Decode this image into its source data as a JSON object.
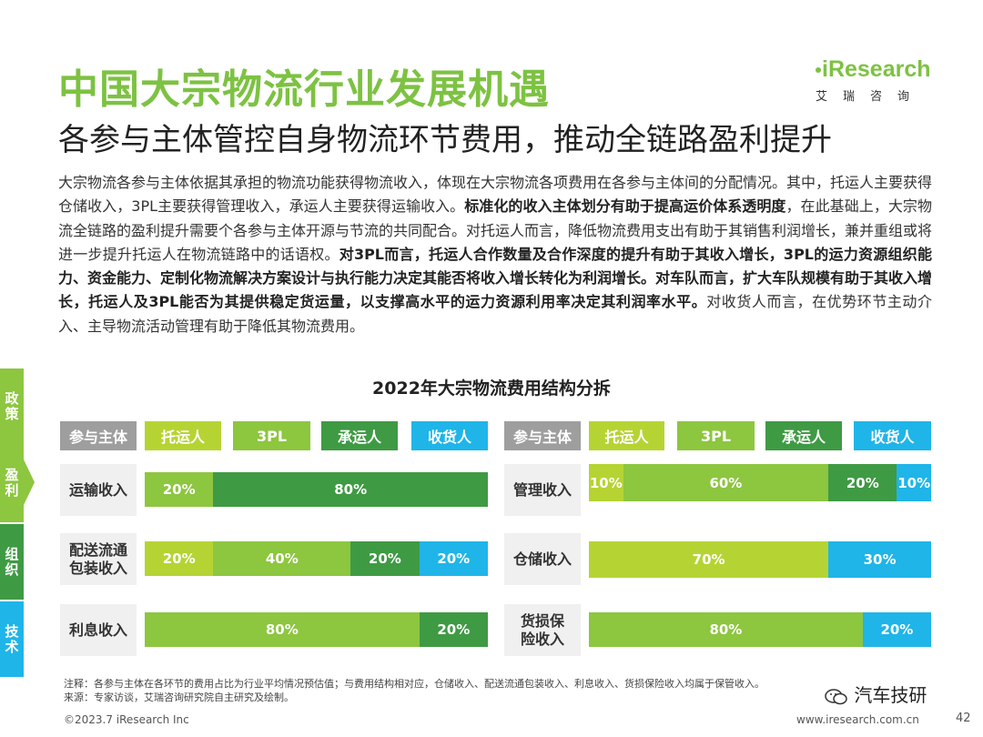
{
  "title": "中国大宗物流行业发展机遇",
  "subtitle": "各参与主体管控自身物流环节费用，推动全链路盈利提升",
  "logo": {
    "mark": "iResearch",
    "cn": "艾瑞咨询"
  },
  "paragraph": [
    {
      "t": "大宗物流各参与主体依据其承担的物流功能获得物流收入，体现在大宗物流各项费用在各参与主体间的分配情况。其中，托运人主要获得仓储收入，3PL主要获得管理收入，承运人主要获得运输收入。",
      "b": false
    },
    {
      "t": "标准化的收入主体划分有助于提高运价体系透明度",
      "b": true
    },
    {
      "t": "，在此基础上，大宗物流全链路的盈利提升需要个各参与主体开源与节流的共同配合。对托运人而言，降低物流费用支出有助于其销售利润增长，兼并重组或将进一步提升托运人在物流链路中的话语权。",
      "b": false
    },
    {
      "t": "对3PL而言，托运人合作数量及合作深度的提升有助于其收入增长，3PL的运力资源组织能力、资金能力、定制化物流解决方案设计与执行能力决定其能否将收入增长转化为利润增长。对车队而言，扩大车队规模有助于其收入增长，托运人及3PL能否为其提供稳定货运量，以支撑高水平的运力资源利用率决定其利润率水平。",
      "b": true
    },
    {
      "t": "对收货人而言，在优势环节主动介入、主导物流活动管理有助于降低其物流费用。",
      "b": false
    }
  ],
  "sidebar": [
    "政策",
    "盈利",
    "组织",
    "技术"
  ],
  "chart_data": {
    "type": "table",
    "title": "2022年大宗物流费用结构分拆",
    "header_label": "参与主体",
    "participants": [
      "托运人",
      "3PL",
      "承运人",
      "收货人"
    ],
    "participant_colors": [
      "#b5d433",
      "#8dc63f",
      "#3f9a44",
      "#1fb5e8"
    ],
    "rows": [
      {
        "label": "运输收入",
        "side": "left",
        "segments": [
          {
            "p": "3PL",
            "v": 20
          },
          {
            "p": "承运人",
            "v": 80
          }
        ]
      },
      {
        "label": "配送流通包装收入",
        "side": "left",
        "segments": [
          {
            "p": "托运人",
            "v": 20
          },
          {
            "p": "3PL",
            "v": 40
          },
          {
            "p": "承运人",
            "v": 20
          },
          {
            "p": "收货人",
            "v": 20
          }
        ]
      },
      {
        "label": "利息收入",
        "side": "left",
        "segments": [
          {
            "p": "3PL",
            "v": 80
          },
          {
            "p": "承运人",
            "v": 20
          }
        ]
      },
      {
        "label": "管理收入",
        "side": "right",
        "segments": [
          {
            "p": "托运人",
            "v": 10
          },
          {
            "p": "3PL",
            "v": 60
          },
          {
            "p": "承运人",
            "v": 20
          },
          {
            "p": "收货人",
            "v": 10
          }
        ]
      },
      {
        "label": "仓储收入",
        "side": "right",
        "segments": [
          {
            "p": "托运人",
            "v": 70
          },
          {
            "p": "收货人",
            "v": 30
          }
        ]
      },
      {
        "label": "货损保险收入",
        "side": "right",
        "segments": [
          {
            "p": "3PL",
            "v": 80
          },
          {
            "p": "收货人",
            "v": 20
          }
        ]
      }
    ],
    "unit": "%"
  },
  "notes": [
    "注释：各参与主体在各环节的费用占比为行业平均情况预估值；与费用结构相对应，仓储收入、配送流通包装收入、利息收入、货损保险收入均属于保管收入。",
    "来源：专家访谈，艾瑞咨询研究院自主研究及绘制。"
  ],
  "footer": {
    "copyright": "©2023.7 iResearch Inc",
    "url": "www.iresearch.com.cn",
    "page": "42"
  },
  "watermark": "汽车技研"
}
